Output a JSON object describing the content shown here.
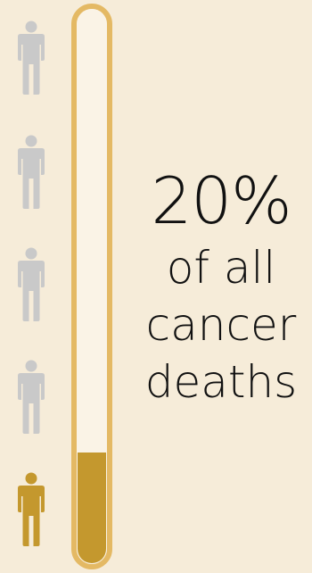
{
  "chart_data": {
    "type": "progress",
    "value": 0.2,
    "total_icons": 5,
    "highlighted_icons": 1,
    "percent_text": "20%",
    "caption_lines": [
      "of all",
      "cancer",
      "deaths"
    ]
  },
  "colors": {
    "background": "#f6ecd9",
    "accent": "#c4982e",
    "accent_border": "#e4b964",
    "tube_inner": "#faf3e6",
    "icon_inactive": "#c9c9c9",
    "text": "#111111"
  },
  "icons": {
    "person": "person-icon"
  }
}
